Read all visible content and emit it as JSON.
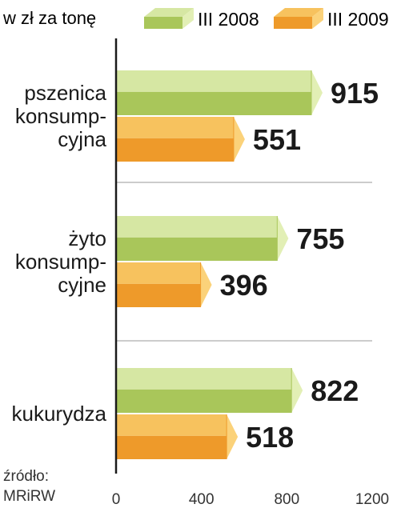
{
  "unit_label": "w zł za tonę",
  "source": {
    "line1": "źródło:",
    "line2": "MRiRW"
  },
  "colors": {
    "green_top": "#d6e7a3",
    "green_front": "#a9c65a",
    "green_end": "#e2efb5",
    "orange_top": "#f7c25e",
    "orange_front": "#ee9a2a",
    "orange_end": "#fbd27a",
    "axis": "#1a1a1a",
    "separator": "#9a9a9a"
  },
  "chart_data": {
    "type": "bar",
    "orientation": "horizontal",
    "categories": [
      [
        "pszenica",
        "konsump-",
        "cyjna"
      ],
      [
        "żyto",
        "konsump-",
        "cyjne"
      ],
      [
        "kukurydza"
      ]
    ],
    "series": [
      {
        "name": "III 2008",
        "color": "green",
        "values": [
          915,
          755,
          822
        ]
      },
      {
        "name": "III 2009",
        "color": "orange",
        "values": [
          551,
          396,
          518
        ]
      }
    ],
    "xlim": [
      0,
      1200
    ],
    "xticks": [
      0,
      400,
      800,
      1200
    ],
    "legend_position": "top"
  }
}
